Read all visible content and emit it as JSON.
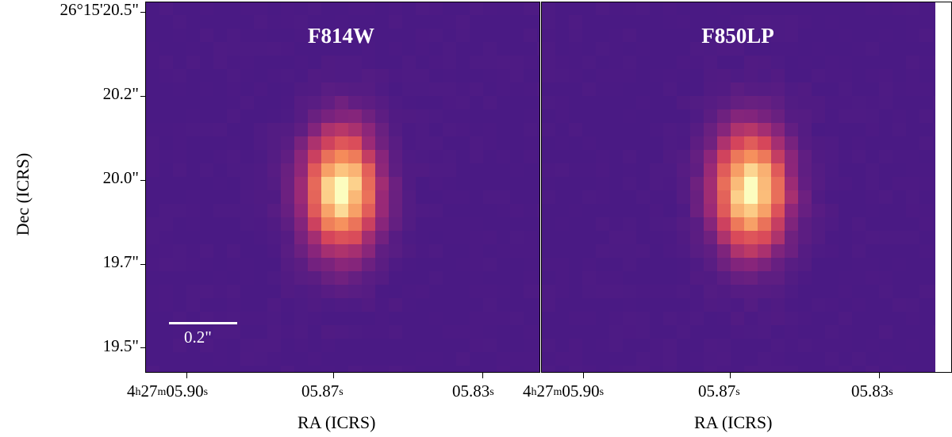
{
  "panels": [
    {
      "filter": "F814W",
      "peak": {
        "col": 14,
        "row": 13.5,
        "sx": 1.6,
        "sy": 2.6,
        "amp": 1.0
      },
      "colormap": "magma"
    },
    {
      "filter": "F850LP",
      "peak": {
        "col": 15,
        "row": 13.5,
        "sx": 1.6,
        "sy": 2.6,
        "amp": 1.0
      },
      "colormap": "magma"
    }
  ],
  "axes": {
    "ylabel": "Dec (ICRS)",
    "xlabel": "RA (ICRS)",
    "yticks": [
      "26°15'20.5\"",
      "20.2\"",
      "20.0\"",
      "19.7\"",
      "19.5\""
    ],
    "xticks": [
      {
        "main": "4",
        "h": "h",
        "m1": "27",
        "m": "m",
        "s1": "05.90",
        "s": "s"
      },
      {
        "main": "05.87",
        "s": "s"
      },
      {
        "main": "05.83",
        "s": "s"
      }
    ]
  },
  "scalebar": {
    "label": "0.2\""
  },
  "colors": {
    "background": "#4a1a84",
    "peak": "#fcfdbf"
  }
}
